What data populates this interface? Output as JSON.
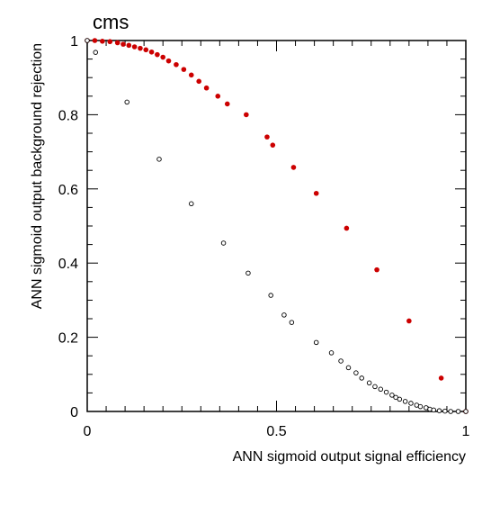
{
  "chart_data": {
    "type": "scatter",
    "title": "cms",
    "xlabel": "ANN sigmoid output signal efficiency",
    "ylabel": "ANN sigmoid output background rejection",
    "xlim": [
      0,
      1
    ],
    "ylim": [
      0,
      1
    ],
    "grid": false,
    "x_ticks": [
      {
        "value": 0,
        "label": "0"
      },
      {
        "value": 0.5,
        "label": "0.5"
      },
      {
        "value": 1,
        "label": "1"
      }
    ],
    "y_ticks": [
      {
        "value": 0,
        "label": "0"
      },
      {
        "value": 0.2,
        "label": "0.2"
      },
      {
        "value": 0.4,
        "label": "0.4"
      },
      {
        "value": 0.6,
        "label": "0.6"
      },
      {
        "value": 0.8,
        "label": "0.8"
      },
      {
        "value": 1,
        "label": "1"
      }
    ],
    "series": [
      {
        "marker": "filled-circle",
        "color": "#cc0000",
        "points": [
          [
            0.0,
            1.0
          ],
          [
            0.02,
            1.0
          ],
          [
            0.04,
            0.998
          ],
          [
            0.06,
            0.997
          ],
          [
            0.08,
            0.994
          ],
          [
            0.095,
            0.99
          ],
          [
            0.11,
            0.987
          ],
          [
            0.125,
            0.983
          ],
          [
            0.14,
            0.979
          ],
          [
            0.155,
            0.975
          ],
          [
            0.17,
            0.969
          ],
          [
            0.185,
            0.962
          ],
          [
            0.2,
            0.955
          ],
          [
            0.215,
            0.945
          ],
          [
            0.235,
            0.935
          ],
          [
            0.255,
            0.922
          ],
          [
            0.275,
            0.907
          ],
          [
            0.295,
            0.89
          ],
          [
            0.315,
            0.872
          ],
          [
            0.345,
            0.85
          ],
          [
            0.37,
            0.829
          ],
          [
            0.42,
            0.8
          ],
          [
            0.475,
            0.74
          ],
          [
            0.49,
            0.718
          ],
          [
            0.545,
            0.658
          ],
          [
            0.605,
            0.588
          ],
          [
            0.685,
            0.494
          ],
          [
            0.765,
            0.382
          ],
          [
            0.85,
            0.244
          ],
          [
            0.935,
            0.09
          ],
          [
            1.0,
            0.0
          ]
        ]
      },
      {
        "marker": "open-circle",
        "color": "#000000",
        "points": [
          [
            0.0,
            1.0
          ],
          [
            0.022,
            0.968
          ],
          [
            0.105,
            0.834
          ],
          [
            0.19,
            0.68
          ],
          [
            0.275,
            0.56
          ],
          [
            0.36,
            0.454
          ],
          [
            0.425,
            0.373
          ],
          [
            0.485,
            0.313
          ],
          [
            0.52,
            0.26
          ],
          [
            0.54,
            0.24
          ],
          [
            0.605,
            0.186
          ],
          [
            0.645,
            0.158
          ],
          [
            0.67,
            0.136
          ],
          [
            0.69,
            0.118
          ],
          [
            0.71,
            0.104
          ],
          [
            0.725,
            0.09
          ],
          [
            0.745,
            0.077
          ],
          [
            0.76,
            0.067
          ],
          [
            0.775,
            0.06
          ],
          [
            0.79,
            0.052
          ],
          [
            0.805,
            0.044
          ],
          [
            0.815,
            0.038
          ],
          [
            0.825,
            0.033
          ],
          [
            0.84,
            0.027
          ],
          [
            0.855,
            0.022
          ],
          [
            0.87,
            0.017
          ],
          [
            0.88,
            0.013
          ],
          [
            0.895,
            0.01
          ],
          [
            0.905,
            0.006
          ],
          [
            0.915,
            0.004
          ],
          [
            0.93,
            0.002
          ],
          [
            0.945,
            0.001
          ],
          [
            0.96,
            0.0
          ],
          [
            0.98,
            0.0
          ],
          [
            1.0,
            0.0
          ]
        ]
      }
    ]
  }
}
